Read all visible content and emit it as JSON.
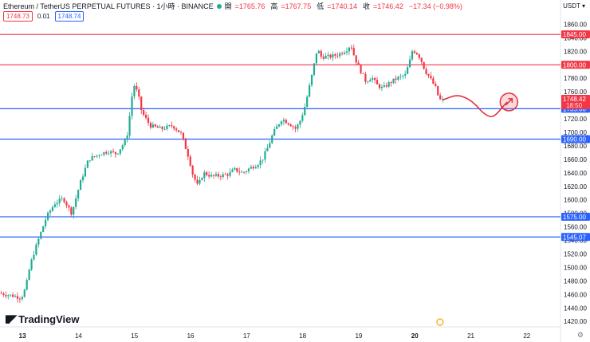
{
  "header": {
    "symbol": "Ethereum / TetherUS PERPETUAL FUTURES · 1小時 · BINANCE",
    "open_label": "開",
    "open": "=1765.76",
    "high_label": "高",
    "high": "=1767.75",
    "low_label": "低",
    "low": "=1740.14",
    "close_label": "收",
    "close": "=1746.42",
    "change": "−17.34 (−0.98%)",
    "bid": "1748.73",
    "qty": "0.01",
    "ask": "1748.74",
    "currency": "USDT"
  },
  "branding": {
    "logo_mark": "𝟏𝟕",
    "logo_text": "TradingView"
  },
  "colors": {
    "up": "#22ab94",
    "down": "#f23645",
    "support": "#2962ff",
    "resistance": "#f23645",
    "projection": "#e03040"
  },
  "chart_data": {
    "type": "candlestick",
    "title": "Ethereum / TetherUS PERPETUAL FUTURES · 1小時 · BINANCE",
    "x_ticks": [
      "13",
      "14",
      "15",
      "16",
      "17",
      "18",
      "19",
      "20",
      "21",
      "22"
    ],
    "y_ticks": [
      "1860.00",
      "1840.00",
      "1820.00",
      "1800.00",
      "1780.00",
      "1760.00",
      "1740.00",
      "1720.00",
      "1700.00",
      "1680.00",
      "1660.00",
      "1640.00",
      "1620.00",
      "1600.00",
      "1580.00",
      "1560.00",
      "1540.00",
      "1520.00",
      "1500.00",
      "1480.00",
      "1460.00",
      "1440.00",
      "1420.00"
    ],
    "ylim": [
      1412,
      1870
    ],
    "xlim": [
      12.6,
      22.6
    ],
    "horizontal_levels": [
      {
        "price": 1845.0,
        "label": "1845.00",
        "color": "#f23645"
      },
      {
        "price": 1800.0,
        "label": "1800.00",
        "color": "#f23645"
      },
      {
        "price": 1735.0,
        "label": "1735.00",
        "color": "#2962ff"
      },
      {
        "price": 1690.0,
        "label": "1690.00",
        "color": "#2962ff"
      },
      {
        "price": 1575.0,
        "label": "1575.00",
        "color": "#2962ff"
      },
      {
        "price": 1545.07,
        "label": "1545.07",
        "color": "#2962ff"
      }
    ],
    "last_price": {
      "price": 1748.42,
      "label": "1748.42",
      "countdown": "18:50"
    },
    "waypoints": [
      [
        12.6,
        1462
      ],
      [
        12.85,
        1458
      ],
      [
        13.0,
        1455
      ],
      [
        13.08,
        1470
      ],
      [
        13.15,
        1500
      ],
      [
        13.2,
        1515
      ],
      [
        13.3,
        1540
      ],
      [
        13.45,
        1575
      ],
      [
        13.6,
        1595
      ],
      [
        13.75,
        1602
      ],
      [
        13.9,
        1580
      ],
      [
        14.05,
        1625
      ],
      [
        14.2,
        1660
      ],
      [
        14.4,
        1668
      ],
      [
        14.55,
        1672
      ],
      [
        14.7,
        1668
      ],
      [
        14.88,
        1690
      ],
      [
        14.95,
        1735
      ],
      [
        15.0,
        1772
      ],
      [
        15.08,
        1758
      ],
      [
        15.15,
        1730
      ],
      [
        15.3,
        1710
      ],
      [
        15.5,
        1705
      ],
      [
        15.7,
        1710
      ],
      [
        15.85,
        1698
      ],
      [
        16.0,
        1660
      ],
      [
        16.05,
        1640
      ],
      [
        16.15,
        1620
      ],
      [
        16.25,
        1640
      ],
      [
        16.4,
        1635
      ],
      [
        16.55,
        1636
      ],
      [
        16.7,
        1638
      ],
      [
        16.8,
        1645
      ],
      [
        16.95,
        1640
      ],
      [
        17.1,
        1648
      ],
      [
        17.2,
        1652
      ],
      [
        17.3,
        1660
      ],
      [
        17.4,
        1678
      ],
      [
        17.5,
        1700
      ],
      [
        17.65,
        1720
      ],
      [
        17.8,
        1712
      ],
      [
        17.9,
        1705
      ],
      [
        17.98,
        1718
      ],
      [
        18.05,
        1735
      ],
      [
        18.12,
        1760
      ],
      [
        18.2,
        1790
      ],
      [
        18.28,
        1824
      ],
      [
        18.35,
        1812
      ],
      [
        18.5,
        1812
      ],
      [
        18.65,
        1815
      ],
      [
        18.8,
        1822
      ],
      [
        18.88,
        1830
      ],
      [
        18.95,
        1810
      ],
      [
        19.05,
        1792
      ],
      [
        19.15,
        1775
      ],
      [
        19.25,
        1782
      ],
      [
        19.35,
        1770
      ],
      [
        19.45,
        1765
      ],
      [
        19.55,
        1772
      ],
      [
        19.7,
        1780
      ],
      [
        19.85,
        1785
      ],
      [
        19.93,
        1805
      ],
      [
        19.98,
        1822
      ],
      [
        20.05,
        1818
      ],
      [
        20.12,
        1810
      ],
      [
        20.2,
        1792
      ],
      [
        20.28,
        1782
      ],
      [
        20.35,
        1772
      ],
      [
        20.4,
        1765
      ],
      [
        20.45,
        1750
      ],
      [
        20.48,
        1748
      ]
    ],
    "projection": [
      [
        20.5,
        1748
      ],
      [
        20.75,
        1756
      ],
      [
        20.95,
        1750
      ],
      [
        21.1,
        1740
      ],
      [
        21.2,
        1730
      ],
      [
        21.35,
        1722
      ],
      [
        21.45,
        1726
      ],
      [
        21.55,
        1736
      ],
      [
        21.65,
        1745
      ]
    ],
    "target_marker": {
      "x": 21.68,
      "price": 1745
    }
  }
}
